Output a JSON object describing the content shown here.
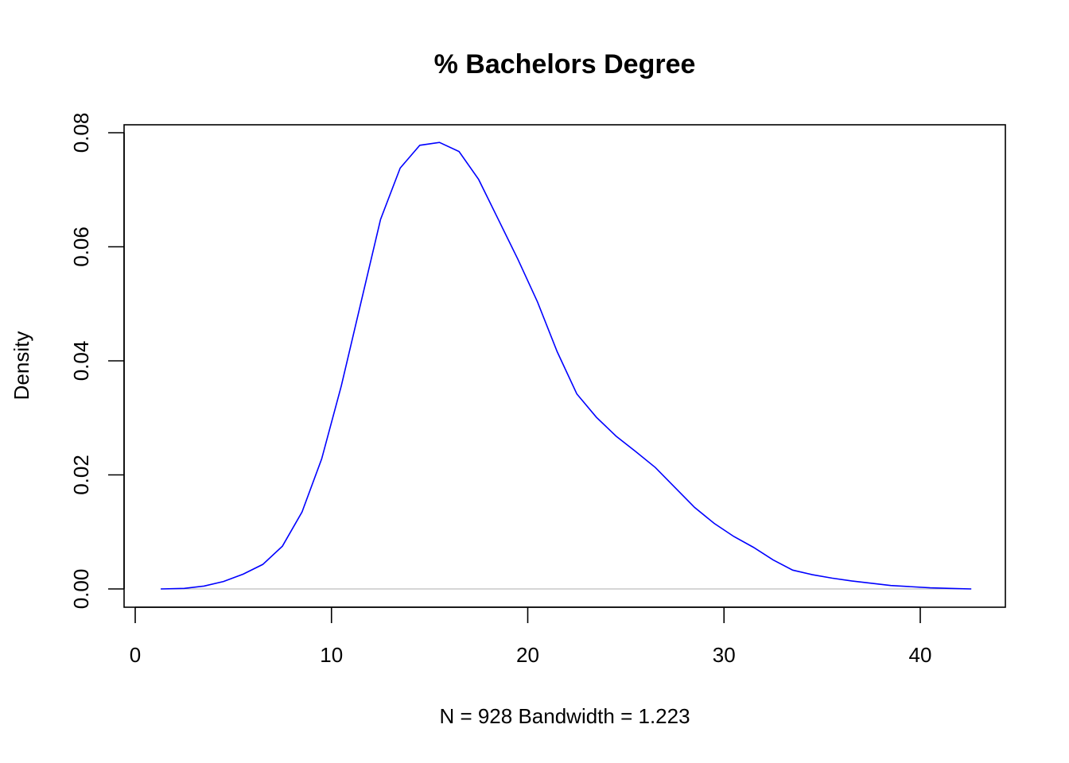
{
  "chart_data": {
    "type": "line",
    "title": "% Bachelors Degree",
    "xlabel": "N = 928   Bandwidth = 1.223",
    "ylabel": "Density",
    "xlim": [
      0,
      44
    ],
    "ylim": [
      0,
      0.08
    ],
    "x_ticks": [
      0,
      10,
      20,
      30,
      40
    ],
    "x_tick_labels": [
      "0",
      "10",
      "20",
      "30",
      "40"
    ],
    "y_ticks": [
      0,
      0.02,
      0.04,
      0.06,
      0.08
    ],
    "y_tick_labels": [
      "0.00",
      "0.02",
      "0.04",
      "0.06",
      "0.08"
    ],
    "grid": false,
    "baseline": 0,
    "series": [
      {
        "color": "#0000ff",
        "x": [
          1.3,
          2.5,
          3.5,
          4.5,
          5.5,
          6.5,
          7.5,
          8.5,
          9.5,
          10.5,
          11.5,
          12.5,
          13.5,
          14.5,
          15.5,
          16.5,
          17.5,
          18.5,
          19.5,
          20.5,
          21.5,
          22.5,
          23.5,
          24.5,
          25.5,
          26.5,
          27.5,
          28.5,
          29.5,
          30.5,
          31.5,
          32.5,
          33.5,
          34.5,
          35.5,
          36.5,
          37.5,
          38.5,
          39.5,
          40.5,
          41.5,
          42.6
        ],
        "y": [
          0.0,
          0.0001,
          0.0005,
          0.0013,
          0.0026,
          0.0043,
          0.0075,
          0.0135,
          0.0228,
          0.0356,
          0.0502,
          0.0648,
          0.0738,
          0.0778,
          0.0783,
          0.0767,
          0.0718,
          0.0648,
          0.0578,
          0.0503,
          0.0416,
          0.0342,
          0.0301,
          0.0268,
          0.0241,
          0.0213,
          0.0178,
          0.0143,
          0.0115,
          0.0092,
          0.0073,
          0.0051,
          0.0033,
          0.0025,
          0.0019,
          0.0014,
          0.001,
          0.0006,
          0.0004,
          0.0002,
          0.0001,
          0.0
        ]
      }
    ]
  }
}
